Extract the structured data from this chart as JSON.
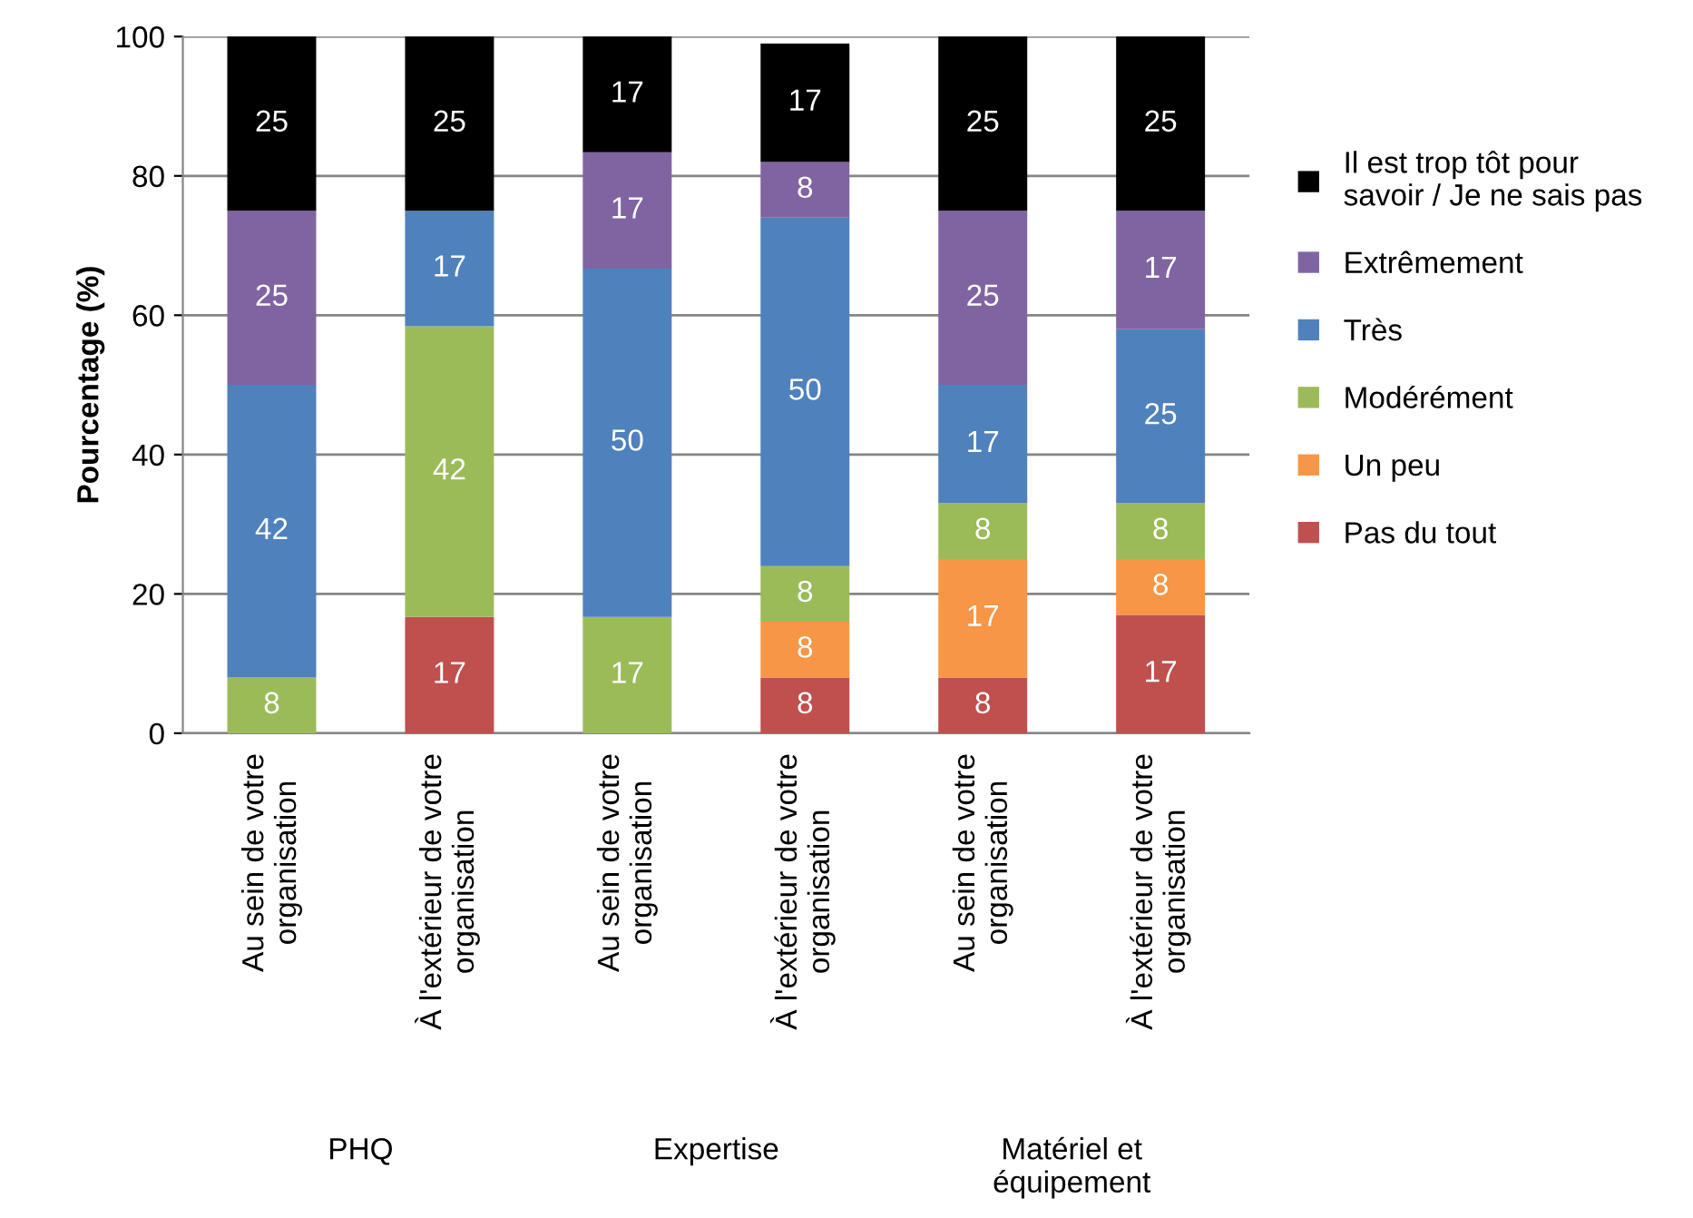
{
  "chart_data": {
    "type": "bar",
    "stacked": true,
    "ylabel": "Pourcentage (%)",
    "categories": [
      "Au sein de votre organisation",
      "À l'extérieur de votre organisation",
      "Au sein de votre organisation",
      "À l'extérieur de votre organisation",
      "Au sein de votre organisation",
      "À l'extérieur de votre organisation"
    ],
    "annotations": [
      "PHQ",
      "Expertise",
      "Matériel et équipement"
    ],
    "series": [
      {
        "name": "Pas du tout",
        "color": "#c0504d",
        "values": [
          null,
          16.7,
          null,
          8,
          8,
          17
        ],
        "value_labels": [
          null,
          "17",
          null,
          "8",
          "8",
          "17"
        ]
      },
      {
        "name": "Un peu",
        "color": "#f79646",
        "values": [
          null,
          null,
          null,
          8,
          17,
          8
        ],
        "value_labels": [
          null,
          null,
          null,
          "8",
          "17",
          "8"
        ]
      },
      {
        "name": "Modérément",
        "color": "#9bbb59",
        "values": [
          8,
          41.7,
          16.7,
          8,
          8,
          8
        ],
        "value_labels": [
          "8",
          "42",
          "17",
          "8",
          "8",
          "8"
        ]
      },
      {
        "name": "Très",
        "color": "#4f81bd",
        "values": [
          42,
          16.6,
          50,
          50,
          17,
          25
        ],
        "value_labels": [
          "42",
          "17",
          "50",
          "50",
          "17",
          "25"
        ]
      },
      {
        "name": "Extrêmement",
        "color": "#8064a2",
        "values": [
          25,
          null,
          16.7,
          8,
          25,
          17
        ],
        "value_labels": [
          "25",
          null,
          "17",
          "8",
          "25",
          "17"
        ]
      },
      {
        "name": "Il est trop tôt pour savoir / Je ne sais pas",
        "color": "#000000",
        "values": [
          25,
          25,
          16.6,
          17,
          25,
          25
        ],
        "value_labels": [
          "25",
          "25",
          "17",
          "17",
          "25",
          "25"
        ]
      }
    ],
    "ylim": [
      0,
      100
    ],
    "yticks": [
      0,
      20,
      40,
      60,
      80,
      100
    ],
    "grid": "y",
    "legend": "right"
  }
}
